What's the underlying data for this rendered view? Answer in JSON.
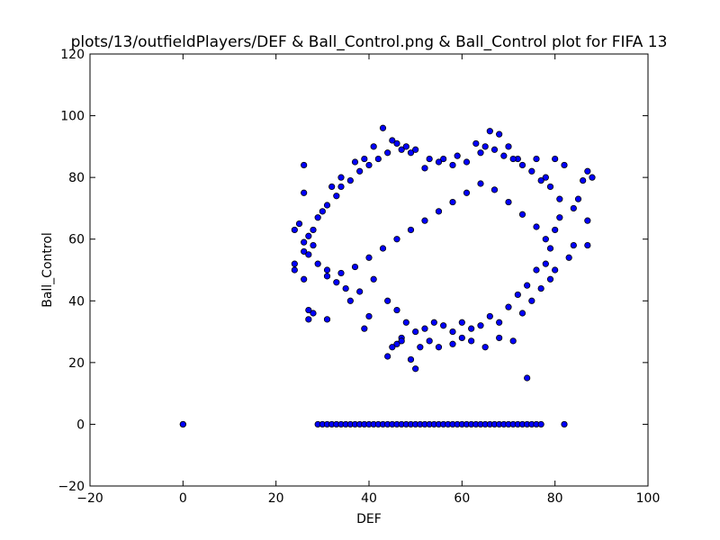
{
  "chart_data": {
    "type": "scatter",
    "title": "plots/13/outfieldPlayers/DEF & Ball_Control.png & Ball_Control plot for FIFA 13",
    "xlabel": "DEF",
    "ylabel": "Ball_Control",
    "xlim": [
      -20,
      100
    ],
    "ylim": [
      -20,
      120
    ],
    "x_ticks": [
      -20,
      0,
      20,
      40,
      60,
      80,
      100
    ],
    "y_ticks": [
      -20,
      0,
      20,
      40,
      60,
      80,
      100,
      120
    ],
    "x_tick_labels": [
      "−20",
      "0",
      "20",
      "40",
      "60",
      "80",
      "100"
    ],
    "y_tick_labels": [
      "−20",
      "0",
      "20",
      "40",
      "60",
      "80",
      "100",
      "120"
    ],
    "grid": false,
    "marker_color": "#0000ff",
    "marker_edge_color": "#000000",
    "series": [
      {
        "points": [
          [
            0,
            0
          ],
          [
            0,
            0
          ],
          [
            29,
            0
          ],
          [
            30,
            0
          ],
          [
            31,
            0
          ],
          [
            32,
            0
          ],
          [
            33,
            0
          ],
          [
            34,
            0
          ],
          [
            35,
            0
          ],
          [
            36,
            0
          ],
          [
            37,
            0
          ],
          [
            38,
            0
          ],
          [
            39,
            0
          ],
          [
            40,
            0
          ],
          [
            41,
            0
          ],
          [
            42,
            0
          ],
          [
            43,
            0
          ],
          [
            44,
            0
          ],
          [
            45,
            0
          ],
          [
            46,
            0
          ],
          [
            47,
            0
          ],
          [
            48,
            0
          ],
          [
            49,
            0
          ],
          [
            50,
            0
          ],
          [
            51,
            0
          ],
          [
            52,
            0
          ],
          [
            53,
            0
          ],
          [
            54,
            0
          ],
          [
            55,
            0
          ],
          [
            56,
            0
          ],
          [
            57,
            0
          ],
          [
            58,
            0
          ],
          [
            59,
            0
          ],
          [
            60,
            0
          ],
          [
            61,
            0
          ],
          [
            62,
            0
          ],
          [
            63,
            0
          ],
          [
            64,
            0
          ],
          [
            65,
            0
          ],
          [
            66,
            0
          ],
          [
            67,
            0
          ],
          [
            68,
            0
          ],
          [
            69,
            0
          ],
          [
            70,
            0
          ],
          [
            71,
            0
          ],
          [
            72,
            0
          ],
          [
            73,
            0
          ],
          [
            74,
            0
          ],
          [
            75,
            0
          ],
          [
            76,
            0
          ],
          [
            77,
            0
          ],
          [
            82,
            0
          ],
          [
            26,
            84
          ],
          [
            26,
            75
          ],
          [
            24,
            63
          ],
          [
            25,
            65
          ],
          [
            24,
            52
          ],
          [
            24,
            50
          ],
          [
            26,
            47
          ],
          [
            27,
            37
          ],
          [
            27,
            34
          ],
          [
            28,
            36
          ],
          [
            31,
            34
          ],
          [
            36,
            40
          ],
          [
            39,
            31
          ],
          [
            40,
            35
          ],
          [
            44,
            22
          ],
          [
            47,
            28
          ],
          [
            49,
            21
          ],
          [
            50,
            18
          ],
          [
            46,
            26
          ],
          [
            45,
            25
          ],
          [
            74,
            15
          ],
          [
            47,
            27
          ],
          [
            51,
            25
          ],
          [
            53,
            27
          ],
          [
            55,
            25
          ],
          [
            58,
            26
          ],
          [
            60,
            28
          ],
          [
            62,
            27
          ],
          [
            65,
            25
          ],
          [
            68,
            28
          ],
          [
            71,
            27
          ],
          [
            73,
            36
          ],
          [
            75,
            40
          ],
          [
            77,
            44
          ],
          [
            79,
            47
          ],
          [
            80,
            50
          ],
          [
            83,
            54
          ],
          [
            84,
            58
          ],
          [
            87,
            58
          ],
          [
            87,
            66
          ],
          [
            88,
            80
          ],
          [
            87,
            82
          ],
          [
            86,
            79
          ],
          [
            85,
            73
          ],
          [
            84,
            70
          ],
          [
            82,
            84
          ],
          [
            80,
            86
          ],
          [
            78,
            80
          ],
          [
            76,
            86
          ],
          [
            72,
            86
          ],
          [
            70,
            90
          ],
          [
            68,
            94
          ],
          [
            66,
            95
          ],
          [
            64,
            88
          ],
          [
            59,
            87
          ],
          [
            56,
            86
          ],
          [
            52,
            83
          ],
          [
            49,
            88
          ],
          [
            47,
            89
          ],
          [
            45,
            92
          ],
          [
            43,
            96
          ],
          [
            41,
            90
          ],
          [
            39,
            86
          ],
          [
            37,
            85
          ],
          [
            34,
            80
          ],
          [
            32,
            77
          ],
          [
            30,
            69
          ],
          [
            28,
            58
          ],
          [
            26,
            56
          ],
          [
            26,
            59
          ],
          [
            31,
            48
          ],
          [
            33,
            46
          ],
          [
            35,
            44
          ],
          [
            38,
            43
          ],
          [
            41,
            47
          ],
          [
            44,
            40
          ],
          [
            46,
            37
          ],
          [
            48,
            33
          ],
          [
            50,
            30
          ],
          [
            52,
            31
          ],
          [
            54,
            33
          ],
          [
            56,
            32
          ],
          [
            58,
            30
          ],
          [
            60,
            33
          ],
          [
            62,
            31
          ],
          [
            64,
            32
          ],
          [
            66,
            35
          ],
          [
            68,
            33
          ],
          [
            70,
            38
          ],
          [
            72,
            42
          ],
          [
            74,
            45
          ],
          [
            76,
            50
          ],
          [
            78,
            52
          ],
          [
            79,
            57
          ],
          [
            80,
            63
          ],
          [
            81,
            67
          ],
          [
            81,
            73
          ],
          [
            79,
            77
          ],
          [
            77,
            79
          ],
          [
            75,
            82
          ],
          [
            73,
            84
          ],
          [
            71,
            86
          ],
          [
            69,
            87
          ],
          [
            67,
            89
          ],
          [
            65,
            90
          ],
          [
            63,
            91
          ],
          [
            61,
            85
          ],
          [
            58,
            84
          ],
          [
            55,
            85
          ],
          [
            53,
            86
          ],
          [
            50,
            89
          ],
          [
            48,
            90
          ],
          [
            46,
            91
          ],
          [
            44,
            88
          ],
          [
            42,
            86
          ],
          [
            40,
            84
          ],
          [
            38,
            82
          ],
          [
            36,
            79
          ],
          [
            34,
            77
          ],
          [
            33,
            74
          ],
          [
            31,
            71
          ],
          [
            29,
            67
          ],
          [
            28,
            63
          ],
          [
            27,
            61
          ],
          [
            27,
            55
          ],
          [
            29,
            52
          ],
          [
            31,
            50
          ],
          [
            34,
            49
          ],
          [
            37,
            51
          ],
          [
            40,
            54
          ],
          [
            43,
            57
          ],
          [
            46,
            60
          ],
          [
            49,
            63
          ],
          [
            52,
            66
          ],
          [
            55,
            69
          ],
          [
            58,
            72
          ],
          [
            61,
            75
          ],
          [
            64,
            78
          ],
          [
            67,
            76
          ],
          [
            70,
            72
          ],
          [
            73,
            68
          ],
          [
            76,
            64
          ],
          [
            78,
            60
          ]
        ]
      }
    ]
  }
}
